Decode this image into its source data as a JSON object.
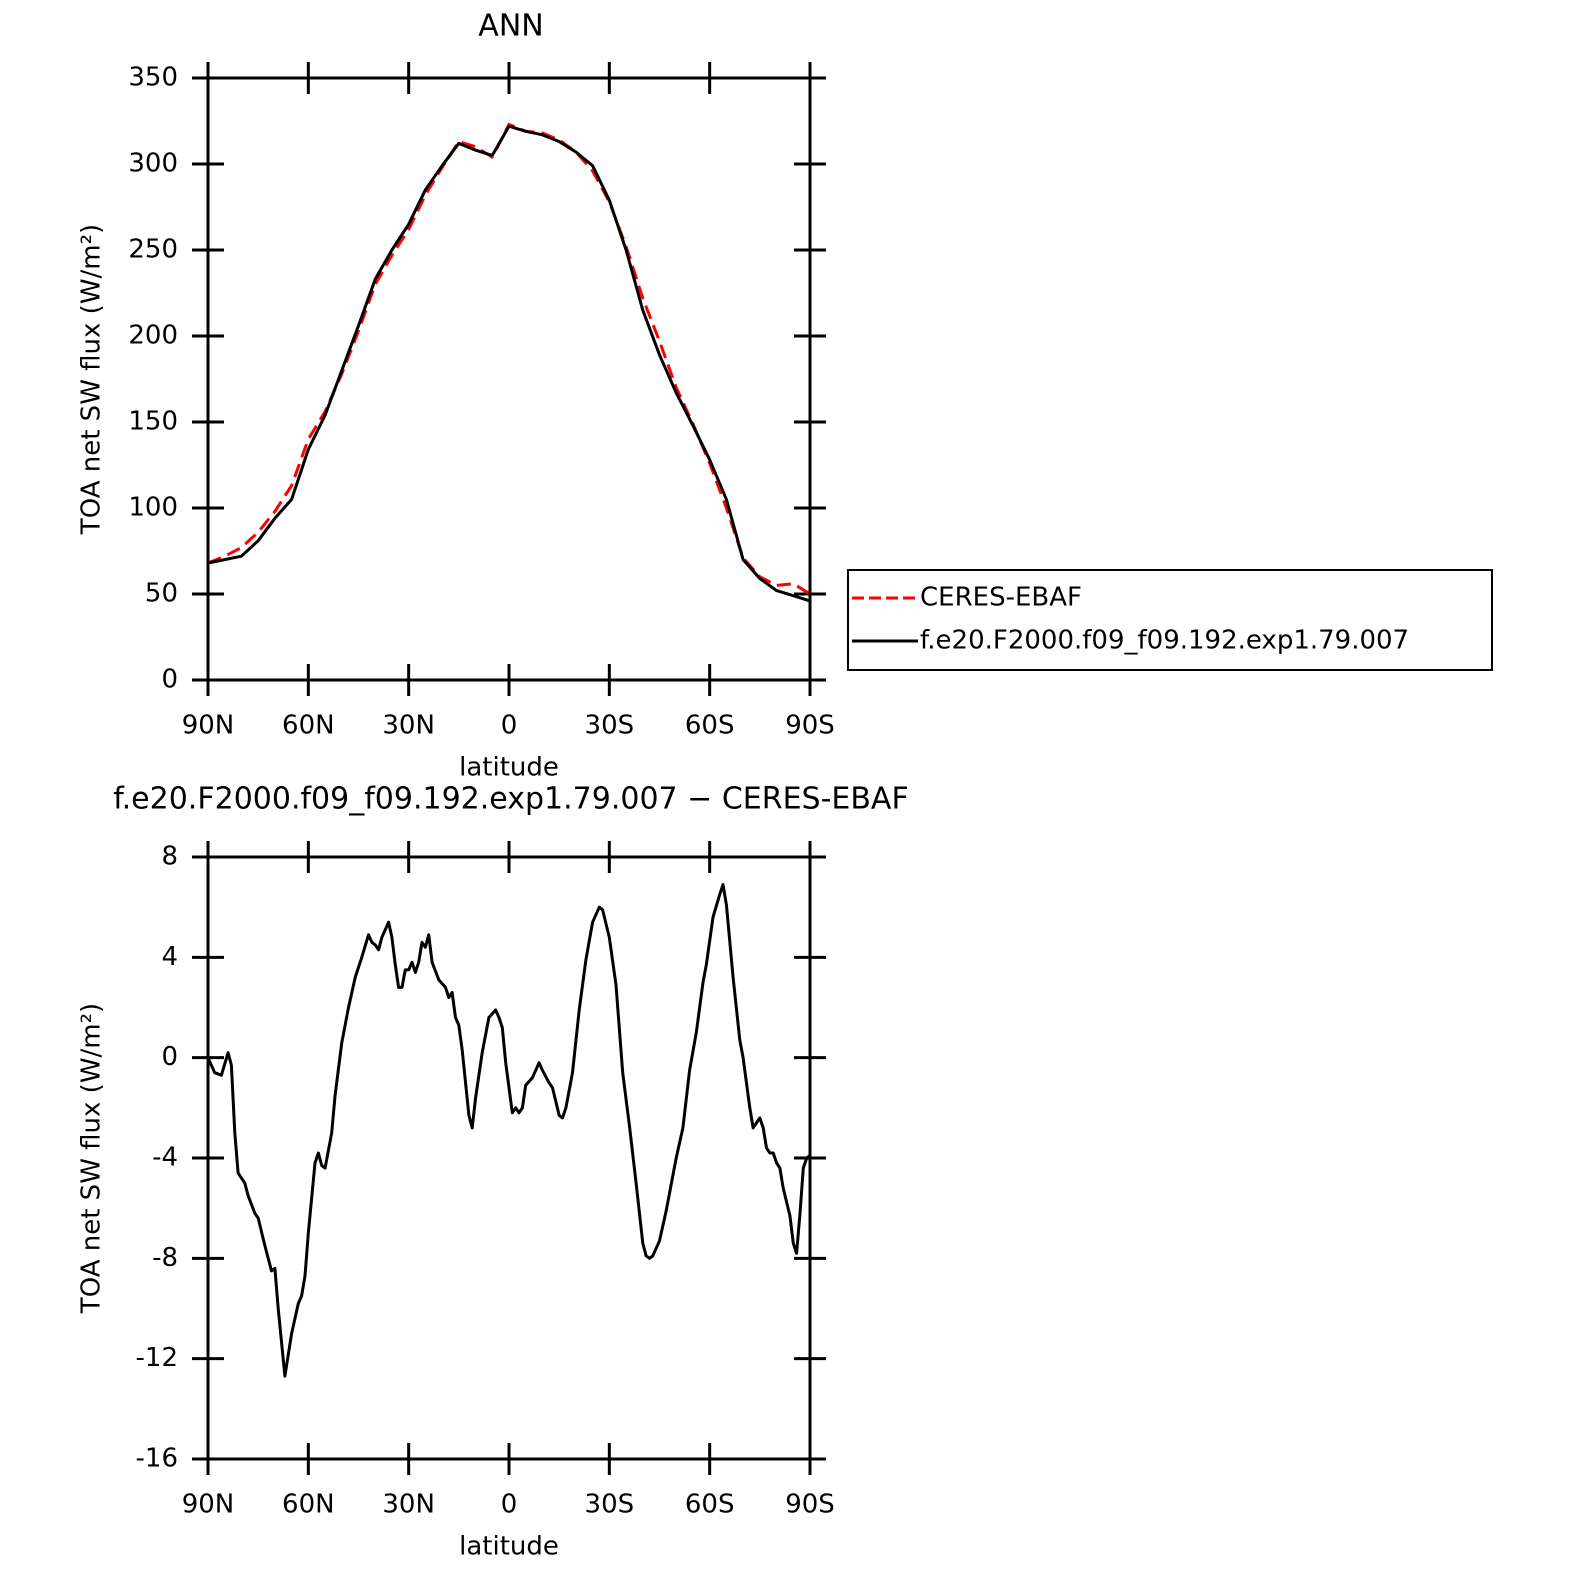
{
  "chart_data": [
    {
      "type": "line",
      "title": "ANN",
      "xlabel": "latitude",
      "ylabel": "TOA net SW flux (W/m²)",
      "x": [
        90,
        85,
        80,
        75,
        70,
        65,
        60,
        55,
        50,
        45,
        40,
        35,
        30,
        25,
        20,
        15,
        10,
        5,
        0,
        -5,
        -10,
        -15,
        -20,
        -25,
        -30,
        -35,
        -40,
        -45,
        -50,
        -55,
        -60,
        -65,
        -70,
        -75,
        -80,
        -85,
        -90
      ],
      "series": [
        {
          "name": "CERES-EBAF",
          "color": "#ff0000",
          "dashed": true,
          "values": [
            68,
            72,
            77,
            86,
            98,
            113,
            140,
            156,
            178,
            203,
            230,
            247,
            262,
            282,
            298,
            313,
            310,
            304,
            323,
            319,
            318,
            314,
            307,
            296,
            278,
            252,
            222,
            197,
            170,
            149,
            126,
            100,
            71,
            60,
            55,
            56,
            50
          ]
        },
        {
          "name": "f.e20.F2000.f09_f09.192.exp1.79.007",
          "color": "#000000",
          "dashed": false,
          "values": [
            68,
            70,
            72,
            81,
            94,
            105,
            134,
            154,
            180,
            206,
            233,
            250,
            265,
            285,
            299,
            312,
            308,
            305,
            322,
            319,
            317,
            313,
            307,
            299,
            279,
            250,
            215,
            189,
            167,
            148,
            128,
            105,
            70,
            59,
            52,
            49,
            46
          ]
        }
      ],
      "xlim": [
        90,
        -90
      ],
      "ylim": [
        0,
        350
      ],
      "xticks": [
        {
          "value": 90,
          "label": "90N"
        },
        {
          "value": 60,
          "label": "60N"
        },
        {
          "value": 30,
          "label": "30N"
        },
        0,
        {
          "value": -30,
          "label": "30S"
        },
        {
          "value": -60,
          "label": "60S"
        },
        {
          "value": -90,
          "label": "90S"
        }
      ],
      "yticks": [
        0,
        50,
        100,
        150,
        200,
        250,
        300,
        350
      ],
      "legend": "right"
    },
    {
      "type": "line",
      "title": "f.e20.F2000.f09_f09.192.exp1.79.007 − CERES-EBAF",
      "xlabel": "latitude",
      "ylabel": "TOA net SW flux (W/m²)",
      "x": [
        90,
        88,
        86,
        84,
        83,
        82,
        81,
        79,
        78,
        76,
        75,
        73,
        71,
        70,
        69,
        67,
        65,
        63,
        62,
        61,
        60,
        58,
        57,
        56,
        55,
        53,
        52,
        50,
        48,
        46,
        44,
        42,
        41,
        40,
        39,
        38,
        36,
        35,
        34,
        33,
        32,
        31,
        30,
        29,
        28,
        27,
        26,
        25,
        24,
        23,
        21,
        19,
        18,
        17,
        16,
        15,
        14,
        12,
        11,
        10,
        8,
        6,
        4,
        3,
        2,
        1,
        -1,
        -2,
        -3,
        -4,
        -5,
        -7,
        -9,
        -10,
        -12,
        -13,
        -15,
        -16,
        -17,
        -19,
        -21,
        -23,
        -25,
        -27,
        -28,
        -30,
        -32,
        -34,
        -36,
        -38,
        -40,
        -41,
        -42,
        -43,
        -45,
        -47,
        -50,
        -52,
        -54,
        -56,
        -58,
        -59,
        -61,
        -63,
        -64,
        -65,
        -67,
        -69,
        -70,
        -72,
        -73,
        -74,
        -75,
        -76,
        -77,
        -78,
        -79,
        -80,
        -81,
        -82,
        -84,
        -85,
        -86,
        -87,
        -88,
        -89,
        -90
      ],
      "color": "#000000",
      "values": [
        0,
        -0.6,
        -0.7,
        0.2,
        -0.3,
        -3,
        -4.6,
        -5,
        -5.5,
        -6.2,
        -6.4,
        -7.5,
        -8.5,
        -8.4,
        -10,
        -12.7,
        -11,
        -9.8,
        -9.5,
        -8.7,
        -7,
        -4.2,
        -3.8,
        -4.3,
        -4.4,
        -3,
        -1.5,
        0.6,
        2,
        3.2,
        4,
        4.9,
        4.6,
        4.5,
        4.3,
        4.8,
        5.4,
        4.8,
        3.7,
        2.8,
        2.8,
        3.5,
        3.5,
        3.8,
        3.4,
        3.8,
        4.6,
        4.4,
        4.9,
        3.8,
        3.1,
        2.8,
        2.4,
        2.6,
        1.6,
        1.3,
        0.3,
        -2.3,
        -2.8,
        -1.6,
        0.2,
        1.6,
        1.9,
        1.6,
        1.2,
        -0.2,
        -2.2,
        -2,
        -2.2,
        -2,
        -1.1,
        -0.8,
        -0.2,
        -0.5,
        -1,
        -1.2,
        -2.3,
        -2.4,
        -2,
        -0.6,
        1.9,
        3.9,
        5.4,
        6,
        5.9,
        4.8,
        2.9,
        -0.6,
        -2.7,
        -5,
        -7.4,
        -7.9,
        -8,
        -7.9,
        -7.3,
        -6.1,
        -4,
        -2.8,
        -0.5,
        1,
        3,
        3.7,
        5.6,
        6.5,
        6.9,
        6.1,
        3.2,
        0.7,
        0,
        -2,
        -2.8,
        -2.6,
        -2.4,
        -2.8,
        -3.6,
        -3.8,
        -3.8,
        -4.2,
        -4.4,
        -5.2,
        -6.3,
        -7.4,
        -7.8,
        -6.2,
        -4.4,
        -4,
        -3.9
      ],
      "xlim": [
        90,
        -90
      ],
      "ylim": [
        -16,
        8
      ],
      "xticks": [
        {
          "value": 90,
          "label": "90N"
        },
        {
          "value": 60,
          "label": "60N"
        },
        {
          "value": 30,
          "label": "30N"
        },
        0,
        {
          "value": -30,
          "label": "30S"
        },
        {
          "value": -60,
          "label": "60S"
        },
        {
          "value": -90,
          "label": "90S"
        }
      ],
      "yticks": [
        8,
        4,
        0,
        -4,
        -8,
        -12,
        -16
      ]
    }
  ]
}
